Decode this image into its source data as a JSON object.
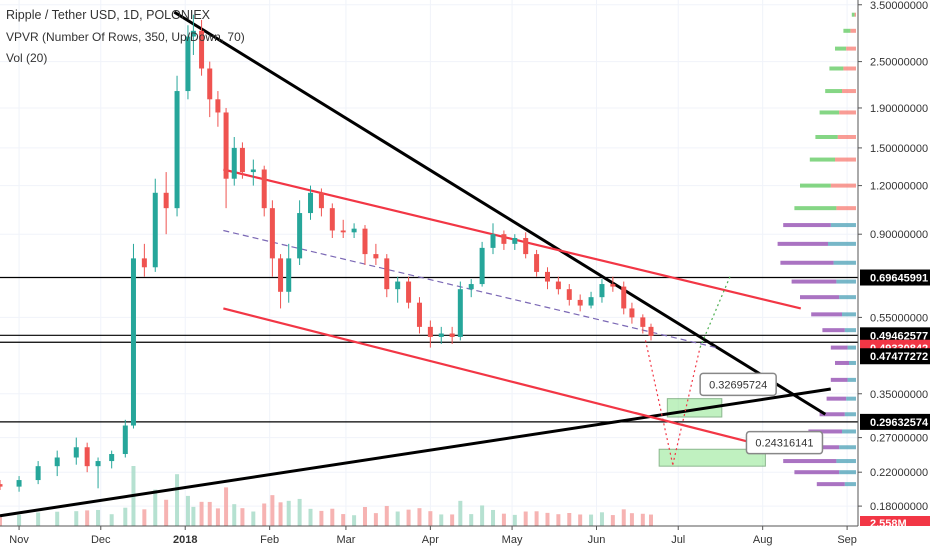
{
  "header": {
    "title": "Ripple / Tether USD, 1D, POLONIEX",
    "vpvr_label": "VPVR (Number Of Rows, 350, Up/Down, 70)",
    "vol_label": "Vol (20)"
  },
  "chart_data": {
    "type": "candlestick",
    "price_scale": "log",
    "ylim": [
      0.16,
      3.6
    ],
    "x_range": [
      "2017-10-25",
      "2018-09-05"
    ],
    "x_ticks": [
      {
        "date": "2017-11-01",
        "label": "Nov"
      },
      {
        "date": "2017-12-01",
        "label": "Dec"
      },
      {
        "date": "2018-01-01",
        "label": "2018"
      },
      {
        "date": "2018-02-01",
        "label": "Feb"
      },
      {
        "date": "2018-03-01",
        "label": "Mar"
      },
      {
        "date": "2018-04-01",
        "label": "Apr"
      },
      {
        "date": "2018-05-01",
        "label": "May"
      },
      {
        "date": "2018-06-01",
        "label": "Jun"
      },
      {
        "date": "2018-07-01",
        "label": "Jul"
      },
      {
        "date": "2018-08-01",
        "label": "Aug"
      },
      {
        "date": "2018-09-01",
        "label": "Sep"
      }
    ],
    "y_ticks": [
      {
        "value": 3.5,
        "label": "3.50000000"
      },
      {
        "value": 2.5,
        "label": "2.50000000"
      },
      {
        "value": 1.9,
        "label": "1.90000000"
      },
      {
        "value": 1.5,
        "label": "1.50000000"
      },
      {
        "value": 1.2,
        "label": "1.20000000"
      },
      {
        "value": 0.9,
        "label": "0.90000000"
      },
      {
        "value": 0.55,
        "label": "0.55000000"
      },
      {
        "value": 0.35,
        "label": "0.35000000"
      },
      {
        "value": 0.27,
        "label": "0.27000000"
      },
      {
        "value": 0.22,
        "label": "0.22000000"
      },
      {
        "value": 0.18,
        "label": "0.18000000"
      }
    ],
    "price_tags": [
      {
        "value": 0.69645991,
        "label": "0.69645991",
        "bg": "#000000",
        "fg": "#ffffff"
      },
      {
        "value": 0.49462577,
        "label": "0.49462577",
        "bg": "#000000",
        "fg": "#ffffff"
      },
      {
        "value": 0.49330842,
        "label": "0.49330842",
        "bg": "#f23645",
        "fg": "#ffffff"
      },
      {
        "value": 0.47477272,
        "label": "0.47477272",
        "bg": "#000000",
        "fg": "#ffffff"
      },
      {
        "value": 0.29632574,
        "label": "0.29632574",
        "bg": "#000000",
        "fg": "#ffffff"
      }
    ],
    "volume_tag": {
      "label": "2.558M",
      "bg": "#f23645",
      "fg": "#ffffff"
    },
    "horizontal_levels": [
      0.69645991,
      0.49462577,
      0.47477272,
      0.29632574
    ],
    "trendlines": [
      {
        "name": "black-descending",
        "color": "#000000",
        "points": [
          [
            "2017-12-28",
            3.35
          ],
          [
            "2018-08-24",
            0.31
          ]
        ]
      },
      {
        "name": "black-ascending",
        "color": "#000000",
        "points": [
          [
            "2017-10-25",
            0.17
          ],
          [
            "2018-08-26",
            0.36
          ]
        ]
      },
      {
        "name": "red-upper-channel",
        "color": "#f23645",
        "points": [
          [
            "2018-01-15",
            1.32
          ],
          [
            "2018-08-15",
            0.58
          ]
        ]
      },
      {
        "name": "red-lower-channel",
        "color": "#f23645",
        "points": [
          [
            "2018-01-15",
            0.58
          ],
          [
            "2018-07-30",
            0.26
          ]
        ]
      },
      {
        "name": "dashed-midline",
        "color": "#7b68b5",
        "points": [
          [
            "2018-01-15",
            0.92
          ],
          [
            "2018-07-15",
            0.46
          ]
        ]
      }
    ],
    "projections": [
      {
        "color": "#f23645",
        "points": [
          [
            "2018-06-19",
            0.48
          ],
          [
            "2018-06-29",
            0.23
          ]
        ]
      },
      {
        "color": "#f23645",
        "points": [
          [
            "2018-06-29",
            0.23
          ],
          [
            "2018-07-09",
            0.46
          ]
        ]
      },
      {
        "color": "#4caf50",
        "points": [
          [
            "2018-07-09",
            0.46
          ],
          [
            "2018-07-20",
            0.7
          ]
        ]
      }
    ],
    "target_boxes": [
      {
        "x": [
          "2018-06-27",
          "2018-07-17"
        ],
        "y": [
          0.305,
          0.34
        ],
        "color": "#8ee68e"
      },
      {
        "x": [
          "2018-06-24",
          "2018-08-02"
        ],
        "y": [
          0.228,
          0.252
        ],
        "color": "#8ee68e"
      }
    ],
    "callouts": [
      {
        "label": "0.32695724",
        "x": "2018-07-23",
        "y": 0.37
      },
      {
        "label": "0.24316141",
        "x": "2018-08-09",
        "y": 0.262
      }
    ],
    "candles": [
      {
        "d": "2017-10-25",
        "o": 0.205,
        "h": 0.21,
        "l": 0.198,
        "c": 0.202
      },
      {
        "d": "2017-11-01",
        "o": 0.202,
        "h": 0.215,
        "l": 0.196,
        "c": 0.21
      },
      {
        "d": "2017-11-08",
        "o": 0.21,
        "h": 0.235,
        "l": 0.205,
        "c": 0.228
      },
      {
        "d": "2017-11-15",
        "o": 0.228,
        "h": 0.25,
        "l": 0.215,
        "c": 0.24
      },
      {
        "d": "2017-11-22",
        "o": 0.24,
        "h": 0.27,
        "l": 0.23,
        "c": 0.255
      },
      {
        "d": "2017-11-26",
        "o": 0.255,
        "h": 0.262,
        "l": 0.22,
        "c": 0.228
      },
      {
        "d": "2017-11-30",
        "o": 0.228,
        "h": 0.24,
        "l": 0.2,
        "c": 0.235
      },
      {
        "d": "2017-12-05",
        "o": 0.235,
        "h": 0.25,
        "l": 0.225,
        "c": 0.245
      },
      {
        "d": "2017-12-10",
        "o": 0.245,
        "h": 0.3,
        "l": 0.24,
        "c": 0.29
      },
      {
        "d": "2017-12-13",
        "o": 0.29,
        "h": 0.85,
        "l": 0.285,
        "c": 0.78
      },
      {
        "d": "2017-12-17",
        "o": 0.78,
        "h": 0.85,
        "l": 0.7,
        "c": 0.74
      },
      {
        "d": "2017-12-21",
        "o": 0.74,
        "h": 1.25,
        "l": 0.72,
        "c": 1.15
      },
      {
        "d": "2017-12-25",
        "o": 1.15,
        "h": 1.3,
        "l": 0.9,
        "c": 1.05
      },
      {
        "d": "2017-12-29",
        "o": 1.05,
        "h": 2.3,
        "l": 1.0,
        "c": 2.1
      },
      {
        "d": "2018-01-02",
        "o": 2.1,
        "h": 3.1,
        "l": 2.0,
        "c": 2.9
      },
      {
        "d": "2018-01-04",
        "o": 2.9,
        "h": 3.3,
        "l": 2.6,
        "c": 3.0
      },
      {
        "d": "2018-01-07",
        "o": 3.0,
        "h": 3.2,
        "l": 2.3,
        "c": 2.4
      },
      {
        "d": "2018-01-10",
        "o": 2.4,
        "h": 2.5,
        "l": 1.8,
        "c": 2.0
      },
      {
        "d": "2018-01-13",
        "o": 2.0,
        "h": 2.1,
        "l": 1.7,
        "c": 1.85
      },
      {
        "d": "2018-01-16",
        "o": 1.85,
        "h": 1.9,
        "l": 1.05,
        "c": 1.25
      },
      {
        "d": "2018-01-19",
        "o": 1.25,
        "h": 1.6,
        "l": 1.2,
        "c": 1.5
      },
      {
        "d": "2018-01-22",
        "o": 1.5,
        "h": 1.55,
        "l": 1.25,
        "c": 1.3
      },
      {
        "d": "2018-01-26",
        "o": 1.3,
        "h": 1.4,
        "l": 1.2,
        "c": 1.32
      },
      {
        "d": "2018-01-30",
        "o": 1.32,
        "h": 1.35,
        "l": 1.0,
        "c": 1.05
      },
      {
        "d": "2018-02-02",
        "o": 1.05,
        "h": 1.1,
        "l": 0.7,
        "c": 0.78
      },
      {
        "d": "2018-02-05",
        "o": 0.78,
        "h": 0.8,
        "l": 0.58,
        "c": 0.64
      },
      {
        "d": "2018-02-08",
        "o": 0.64,
        "h": 0.85,
        "l": 0.6,
        "c": 0.78
      },
      {
        "d": "2018-02-12",
        "o": 0.78,
        "h": 1.1,
        "l": 0.75,
        "c": 1.02
      },
      {
        "d": "2018-02-16",
        "o": 1.02,
        "h": 1.2,
        "l": 0.98,
        "c": 1.15
      },
      {
        "d": "2018-02-20",
        "o": 1.15,
        "h": 1.18,
        "l": 1.0,
        "c": 1.05
      },
      {
        "d": "2018-02-24",
        "o": 1.05,
        "h": 1.08,
        "l": 0.88,
        "c": 0.92
      },
      {
        "d": "2018-02-28",
        "o": 0.92,
        "h": 0.98,
        "l": 0.88,
        "c": 0.91
      },
      {
        "d": "2018-03-04",
        "o": 0.91,
        "h": 0.96,
        "l": 0.88,
        "c": 0.93
      },
      {
        "d": "2018-03-08",
        "o": 0.93,
        "h": 0.95,
        "l": 0.75,
        "c": 0.8
      },
      {
        "d": "2018-03-12",
        "o": 0.8,
        "h": 0.85,
        "l": 0.75,
        "c": 0.78
      },
      {
        "d": "2018-03-16",
        "o": 0.78,
        "h": 0.8,
        "l": 0.62,
        "c": 0.65
      },
      {
        "d": "2018-03-20",
        "o": 0.65,
        "h": 0.7,
        "l": 0.6,
        "c": 0.68
      },
      {
        "d": "2018-03-24",
        "o": 0.68,
        "h": 0.7,
        "l": 0.58,
        "c": 0.6
      },
      {
        "d": "2018-03-28",
        "o": 0.6,
        "h": 0.62,
        "l": 0.5,
        "c": 0.52
      },
      {
        "d": "2018-04-01",
        "o": 0.52,
        "h": 0.54,
        "l": 0.46,
        "c": 0.49
      },
      {
        "d": "2018-04-05",
        "o": 0.49,
        "h": 0.52,
        "l": 0.47,
        "c": 0.5
      },
      {
        "d": "2018-04-09",
        "o": 0.5,
        "h": 0.52,
        "l": 0.47,
        "c": 0.49
      },
      {
        "d": "2018-04-12",
        "o": 0.49,
        "h": 0.68,
        "l": 0.48,
        "c": 0.65
      },
      {
        "d": "2018-04-16",
        "o": 0.65,
        "h": 0.69,
        "l": 0.62,
        "c": 0.67
      },
      {
        "d": "2018-04-20",
        "o": 0.67,
        "h": 0.86,
        "l": 0.66,
        "c": 0.83
      },
      {
        "d": "2018-04-24",
        "o": 0.83,
        "h": 0.96,
        "l": 0.8,
        "c": 0.9
      },
      {
        "d": "2018-04-28",
        "o": 0.9,
        "h": 0.92,
        "l": 0.82,
        "c": 0.85
      },
      {
        "d": "2018-05-02",
        "o": 0.85,
        "h": 0.9,
        "l": 0.82,
        "c": 0.88
      },
      {
        "d": "2018-05-06",
        "o": 0.88,
        "h": 0.91,
        "l": 0.78,
        "c": 0.8
      },
      {
        "d": "2018-05-10",
        "o": 0.8,
        "h": 0.82,
        "l": 0.7,
        "c": 0.72
      },
      {
        "d": "2018-05-14",
        "o": 0.72,
        "h": 0.74,
        "l": 0.65,
        "c": 0.68
      },
      {
        "d": "2018-05-18",
        "o": 0.68,
        "h": 0.7,
        "l": 0.63,
        "c": 0.65
      },
      {
        "d": "2018-05-22",
        "o": 0.65,
        "h": 0.67,
        "l": 0.59,
        "c": 0.61
      },
      {
        "d": "2018-05-26",
        "o": 0.61,
        "h": 0.63,
        "l": 0.57,
        "c": 0.59
      },
      {
        "d": "2018-05-30",
        "o": 0.59,
        "h": 0.64,
        "l": 0.58,
        "c": 0.62
      },
      {
        "d": "2018-06-03",
        "o": 0.62,
        "h": 0.69,
        "l": 0.6,
        "c": 0.67
      },
      {
        "d": "2018-06-07",
        "o": 0.67,
        "h": 0.7,
        "l": 0.64,
        "c": 0.66
      },
      {
        "d": "2018-06-11",
        "o": 0.66,
        "h": 0.68,
        "l": 0.56,
        "c": 0.58
      },
      {
        "d": "2018-06-14",
        "o": 0.58,
        "h": 0.6,
        "l": 0.53,
        "c": 0.55
      },
      {
        "d": "2018-06-18",
        "o": 0.55,
        "h": 0.56,
        "l": 0.5,
        "c": 0.52
      },
      {
        "d": "2018-06-21",
        "o": 0.52,
        "h": 0.53,
        "l": 0.48,
        "c": 0.493
      }
    ],
    "volume_profile_up": [
      {
        "price": 3.3,
        "vol": 0.02
      },
      {
        "price": 3.0,
        "vol": 0.05
      },
      {
        "price": 2.7,
        "vol": 0.08
      },
      {
        "price": 2.4,
        "vol": 0.1
      },
      {
        "price": 2.1,
        "vol": 0.12
      },
      {
        "price": 1.85,
        "vol": 0.14
      },
      {
        "price": 1.6,
        "vol": 0.16
      },
      {
        "price": 1.4,
        "vol": 0.18
      },
      {
        "price": 1.2,
        "vol": 0.22
      },
      {
        "price": 1.05,
        "vol": 0.3
      },
      {
        "price": 0.95,
        "vol": 0.34
      },
      {
        "price": 0.85,
        "vol": 0.36
      },
      {
        "price": 0.76,
        "vol": 0.38
      },
      {
        "price": 0.68,
        "vol": 0.32
      },
      {
        "price": 0.62,
        "vol": 0.28
      },
      {
        "price": 0.56,
        "vol": 0.22
      },
      {
        "price": 0.51,
        "vol": 0.16
      },
      {
        "price": 0.46,
        "vol": 0.12
      },
      {
        "price": 0.42,
        "vol": 0.1
      },
      {
        "price": 0.38,
        "vol": 0.12
      },
      {
        "price": 0.34,
        "vol": 0.14
      },
      {
        "price": 0.31,
        "vol": 0.18
      },
      {
        "price": 0.28,
        "vol": 0.24
      },
      {
        "price": 0.255,
        "vol": 0.3
      },
      {
        "price": 0.235,
        "vol": 0.38
      },
      {
        "price": 0.22,
        "vol": 0.32
      },
      {
        "price": 0.205,
        "vol": 0.2
      }
    ],
    "volume_profile_down": [
      {
        "price": 3.3,
        "vol": 0.01
      },
      {
        "price": 3.0,
        "vol": 0.04
      },
      {
        "price": 2.7,
        "vol": 0.07
      },
      {
        "price": 2.4,
        "vol": 0.09
      },
      {
        "price": 2.1,
        "vol": 0.1
      },
      {
        "price": 1.85,
        "vol": 0.12
      },
      {
        "price": 1.6,
        "vol": 0.13
      },
      {
        "price": 1.4,
        "vol": 0.15
      },
      {
        "price": 1.2,
        "vol": 0.18
      },
      {
        "price": 1.05,
        "vol": 0.14
      },
      {
        "price": 0.95,
        "vol": 0.18
      },
      {
        "price": 0.85,
        "vol": 0.2
      },
      {
        "price": 0.76,
        "vol": 0.16
      },
      {
        "price": 0.68,
        "vol": 0.14
      },
      {
        "price": 0.62,
        "vol": 0.12
      },
      {
        "price": 0.56,
        "vol": 0.1
      },
      {
        "price": 0.51,
        "vol": 0.08
      },
      {
        "price": 0.46,
        "vol": 0.06
      },
      {
        "price": 0.42,
        "vol": 0.05
      },
      {
        "price": 0.38,
        "vol": 0.06
      },
      {
        "price": 0.34,
        "vol": 0.07
      },
      {
        "price": 0.31,
        "vol": 0.08
      },
      {
        "price": 0.28,
        "vol": 0.1
      },
      {
        "price": 0.255,
        "vol": 0.12
      },
      {
        "price": 0.235,
        "vol": 0.14
      },
      {
        "price": 0.22,
        "vol": 0.12
      },
      {
        "price": 0.205,
        "vol": 0.08
      }
    ],
    "colors": {
      "up": "#26a69a",
      "down": "#ef5350",
      "vol_up": "#a9dcc9",
      "vol_down": "#f5a6a4",
      "vp_up": "#8e44ad",
      "vp_down": "#4a9fb5",
      "vp_up_high": "#5cc85c",
      "vp_down_high": "#f77b72",
      "grid": "#f0f3fa",
      "axis": "#555555"
    }
  }
}
